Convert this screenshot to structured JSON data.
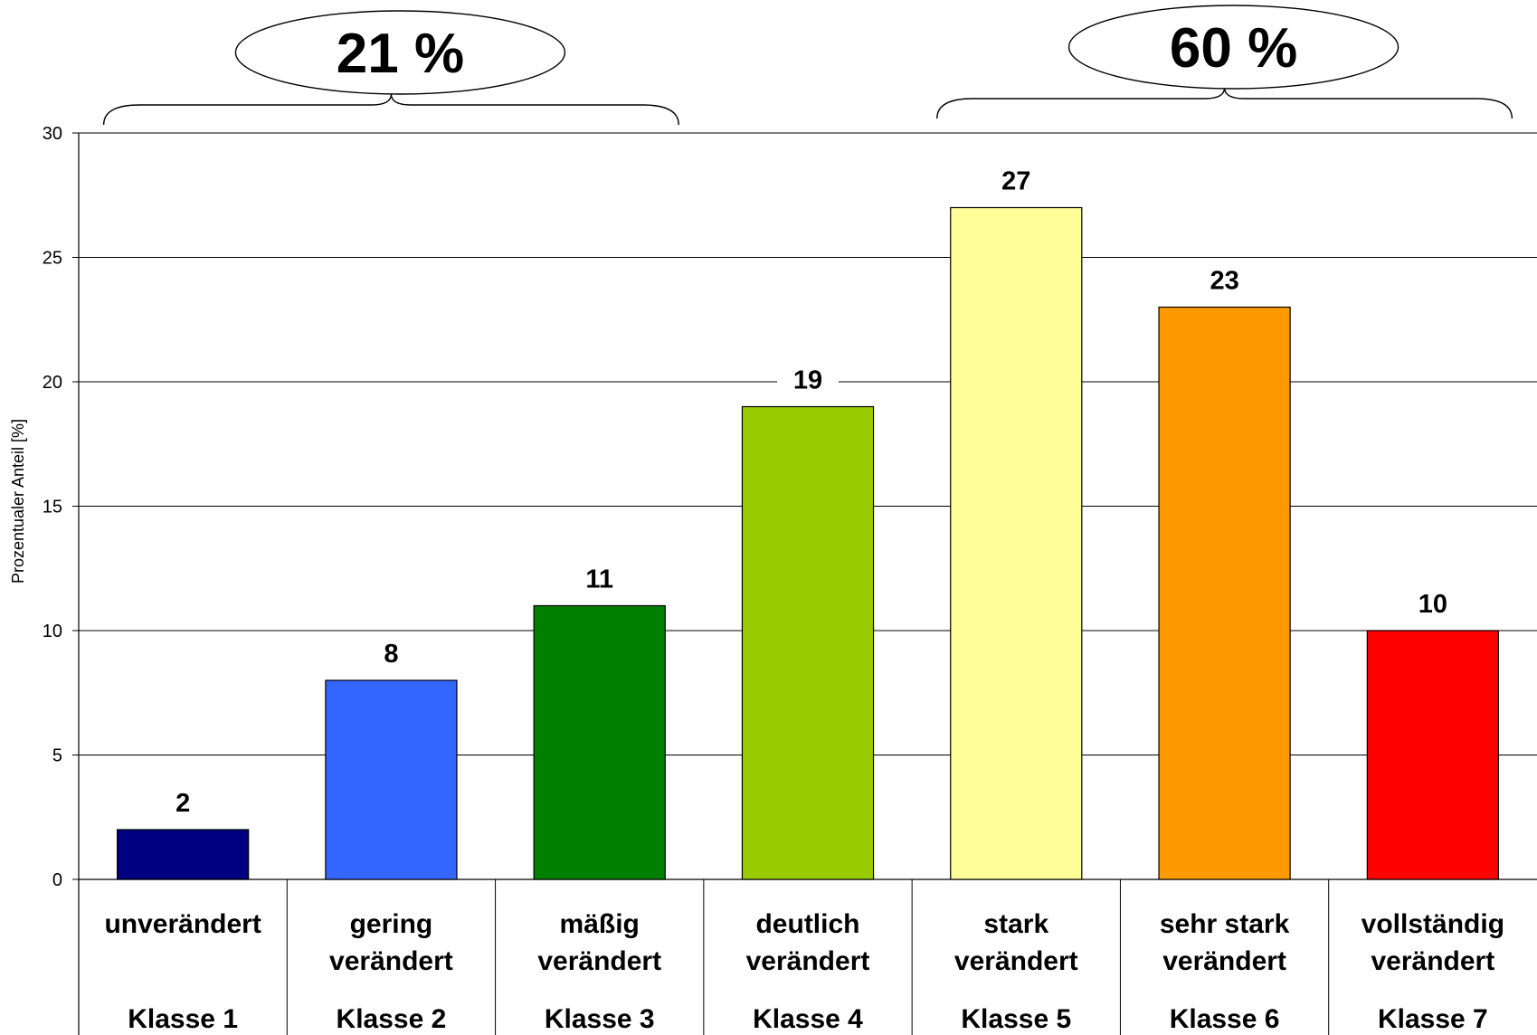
{
  "chart_data": {
    "type": "bar",
    "title": "",
    "xlabel": "",
    "ylabel": "Prozentualer Anteil [%]",
    "ylim": [
      0,
      30
    ],
    "yticks": [
      0,
      5,
      10,
      15,
      20,
      25,
      30
    ],
    "grid": true,
    "categories": [
      {
        "line1": "unverändert",
        "line2": "",
        "klasse": "Klasse 1"
      },
      {
        "line1": "gering",
        "line2": "verändert",
        "klasse": "Klasse 2"
      },
      {
        "line1": "mäßig",
        "line2": "verändert",
        "klasse": "Klasse 3"
      },
      {
        "line1": "deutlich",
        "line2": "verändert",
        "klasse": "Klasse 4"
      },
      {
        "line1": "stark",
        "line2": "verändert",
        "klasse": "Klasse 5"
      },
      {
        "line1": "sehr stark",
        "line2": "verändert",
        "klasse": "Klasse 6"
      },
      {
        "line1": "vollständig",
        "line2": "verändert",
        "klasse": "Klasse 7"
      }
    ],
    "values": [
      2,
      8,
      11,
      19,
      27,
      23,
      10
    ],
    "colors": [
      "#000080",
      "#3366FF",
      "#008000",
      "#99CC00",
      "#FFFF99",
      "#FF9900",
      "#FF0000"
    ],
    "groups": [
      {
        "label": "21 %",
        "from_category": 0,
        "to_category": 2
      },
      {
        "label": "60 %",
        "from_category": 4,
        "to_category": 6
      }
    ]
  }
}
